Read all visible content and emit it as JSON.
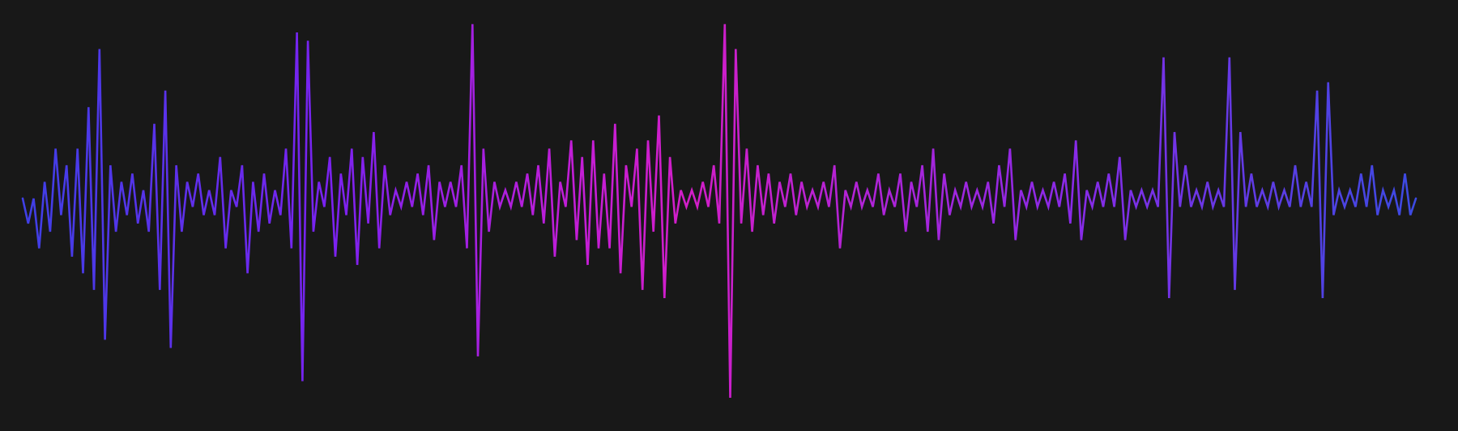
{
  "waveform": {
    "background_color": "#181818",
    "gradient_colors": [
      "#3f3fe6",
      "#7a22f0",
      "#c41ed6",
      "#d21ec8",
      "#8a2ae8",
      "#3c4ae2"
    ],
    "stroke_color_center": "#cf1fcf",
    "description_hidden": "",
    "samples": [
      0.0,
      -0.15,
      0.0,
      -0.3,
      0.1,
      -0.2,
      0.3,
      -0.1,
      0.2,
      -0.35,
      0.3,
      -0.45,
      0.55,
      -0.55,
      0.9,
      -0.85,
      0.2,
      -0.2,
      0.1,
      -0.1,
      0.15,
      -0.15,
      0.05,
      -0.2,
      0.45,
      -0.55,
      0.65,
      -0.9,
      0.2,
      -0.2,
      0.1,
      -0.05,
      0.15,
      -0.1,
      0.05,
      -0.1,
      0.25,
      -0.3,
      0.05,
      -0.05,
      0.2,
      -0.45,
      0.1,
      -0.2,
      0.15,
      -0.15,
      0.05,
      -0.1,
      0.3,
      -0.3,
      1.0,
      -1.1,
      0.95,
      -0.2,
      0.1,
      -0.05,
      0.25,
      -0.35,
      0.15,
      -0.1,
      0.3,
      -0.4,
      0.25,
      -0.15,
      0.4,
      -0.3,
      0.2,
      -0.1,
      0.05,
      -0.05,
      0.1,
      -0.05,
      0.15,
      -0.1,
      0.2,
      -0.25,
      0.1,
      -0.05,
      0.1,
      -0.05,
      0.2,
      -0.3,
      1.05,
      -0.95,
      0.3,
      -0.2,
      0.1,
      -0.05,
      0.05,
      -0.05,
      0.1,
      -0.05,
      0.15,
      -0.1,
      0.2,
      -0.15,
      0.3,
      -0.35,
      0.1,
      -0.05,
      0.35,
      -0.25,
      0.25,
      -0.4,
      0.35,
      -0.3,
      0.15,
      -0.3,
      0.45,
      -0.45,
      0.2,
      -0.05,
      0.3,
      -0.55,
      0.35,
      -0.2,
      0.5,
      -0.6,
      0.25,
      -0.15,
      0.05,
      -0.05,
      0.05,
      -0.05,
      0.1,
      -0.05,
      0.2,
      -0.15,
      1.05,
      -1.2,
      0.9,
      -0.15,
      0.3,
      -0.2,
      0.2,
      -0.1,
      0.15,
      -0.15,
      0.1,
      -0.05,
      0.15,
      -0.1,
      0.1,
      -0.05,
      0.05,
      -0.05,
      0.1,
      -0.05,
      0.2,
      -0.3,
      0.05,
      -0.05,
      0.1,
      -0.05,
      0.05,
      -0.05,
      0.15,
      -0.1,
      0.05,
      -0.05,
      0.15,
      -0.2,
      0.1,
      -0.05,
      0.2,
      -0.2,
      0.3,
      -0.25,
      0.15,
      -0.1,
      0.05,
      -0.05,
      0.1,
      -0.05,
      0.05,
      -0.05,
      0.1,
      -0.15,
      0.2,
      -0.05,
      0.3,
      -0.25,
      0.05,
      -0.05,
      0.1,
      -0.05,
      0.05,
      -0.05,
      0.1,
      -0.05,
      0.15,
      -0.15,
      0.35,
      -0.25,
      0.05,
      -0.05,
      0.1,
      -0.05,
      0.15,
      -0.05,
      0.25,
      -0.25,
      0.05,
      -0.05,
      0.05,
      -0.05,
      0.05,
      -0.05,
      0.85,
      -0.6,
      0.4,
      -0.05,
      0.2,
      -0.05,
      0.05,
      -0.05,
      0.1,
      -0.05,
      0.05,
      -0.05,
      0.85,
      -0.55,
      0.4,
      -0.05,
      0.15,
      -0.05,
      0.05,
      -0.05,
      0.1,
      -0.05,
      0.05,
      -0.05,
      0.2,
      -0.05,
      0.1,
      -0.05,
      0.65,
      -0.6,
      0.7,
      -0.1,
      0.05,
      -0.05,
      0.05,
      -0.05,
      0.15,
      -0.05,
      0.2,
      -0.1,
      0.05,
      -0.05,
      0.05,
      -0.1,
      0.15,
      -0.1,
      0.0
    ]
  }
}
